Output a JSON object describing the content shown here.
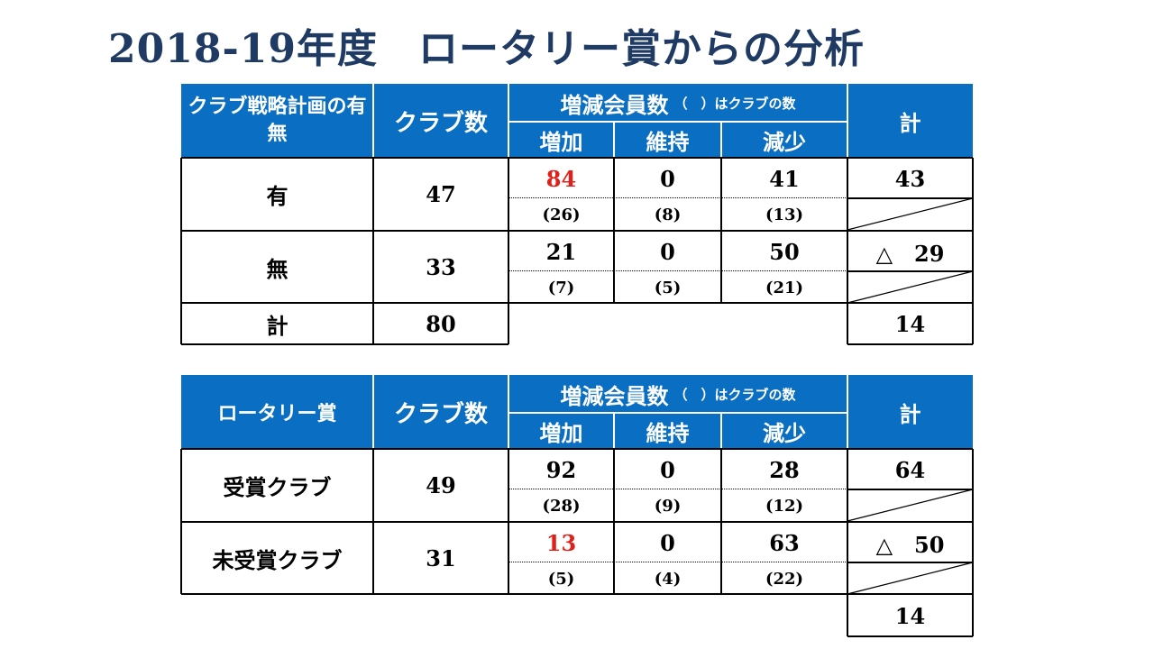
{
  "title": "2018-19年度　ロータリー賞からの分析",
  "table1": {
    "header_category": "クラブ戦略計画の有無",
    "header_clubs": "クラブ数",
    "header_members_main": "増減会員数",
    "header_members_note": "（　）はクラブの数",
    "header_increase": "増加",
    "header_maintain": "維持",
    "header_decrease": "減少",
    "header_total": "計",
    "rows": [
      {
        "label": "有",
        "clubs": "47",
        "increase": "84",
        "increase_clubs": "(26)",
        "maintain": "0",
        "maintain_clubs": "(8)",
        "decrease": "41",
        "decrease_clubs": "(13)",
        "total": "43"
      },
      {
        "label": "無",
        "clubs": "33",
        "increase": "21",
        "increase_clubs": "(7)",
        "maintain": "0",
        "maintain_clubs": "(5)",
        "decrease": "50",
        "decrease_clubs": "(21)",
        "total": "△　29"
      }
    ],
    "sum_label": "計",
    "sum_clubs": "80",
    "sum_total": "14"
  },
  "table2": {
    "header_category": "ロータリー賞",
    "header_clubs": "クラブ数",
    "header_members_main": "増減会員数",
    "header_members_note": "（　）はクラブの数",
    "header_increase": "増加",
    "header_maintain": "維持",
    "header_decrease": "減少",
    "header_total": "計",
    "rows": [
      {
        "label": "受賞クラブ",
        "clubs": "49",
        "increase": "92",
        "increase_clubs": "(28)",
        "maintain": "0",
        "maintain_clubs": "(9)",
        "decrease": "28",
        "decrease_clubs": "(12)",
        "total": "64"
      },
      {
        "label": "未受賞クラブ",
        "clubs": "31",
        "increase": "13",
        "increase_clubs": "(5)",
        "maintain": "0",
        "maintain_clubs": "(4)",
        "decrease": "63",
        "decrease_clubs": "(22)",
        "total": "△　50"
      }
    ],
    "sum_total": "14"
  },
  "colors": {
    "header_bg": "#0a6fc2",
    "title": "#1f3a63",
    "highlight": "#e0201b"
  }
}
